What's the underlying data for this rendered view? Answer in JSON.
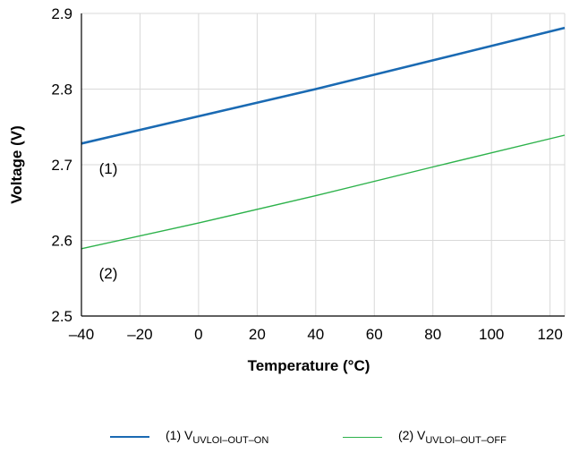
{
  "chart_data": {
    "type": "line",
    "xlabel": "Temperature (°C)",
    "ylabel": "Voltage (V)",
    "xlim": [
      -40,
      125
    ],
    "ylim": [
      2.5,
      2.9
    ],
    "xticks": [
      -40,
      -20,
      0,
      20,
      40,
      60,
      80,
      100,
      120
    ],
    "xtick_labels": [
      "–40",
      "–20",
      "0",
      "20",
      "40",
      "60",
      "80",
      "100",
      "120"
    ],
    "yticks": [
      2.5,
      2.6,
      2.7,
      2.8,
      2.9
    ],
    "ytick_labels": [
      "2.5",
      "2.6",
      "2.7",
      "2.8",
      "2.9"
    ],
    "grid": true,
    "legend_position": "bottom",
    "series": [
      {
        "name": "(1) VUVLOI–OUT–ON",
        "label_prefix": "(1) V",
        "label_sub": "UVLOI–OUT–ON",
        "color": "#1a6ab3",
        "x": [
          -40,
          0,
          40,
          80,
          125
        ],
        "y": [
          2.728,
          2.764,
          2.8,
          2.838,
          2.881
        ]
      },
      {
        "name": "(2) VUVLOI–OUT–OFF",
        "label_prefix": "(2) V",
        "label_sub": "UVLOI–OUT–OFF",
        "color": "#2db24b",
        "x": [
          -40,
          0,
          40,
          80,
          125
        ],
        "y": [
          2.589,
          2.623,
          2.659,
          2.697,
          2.739
        ]
      }
    ],
    "annotations": [
      {
        "text": "(1)",
        "x": -34,
        "y": 2.688
      },
      {
        "text": "(2)",
        "x": -34,
        "y": 2.55
      }
    ]
  }
}
